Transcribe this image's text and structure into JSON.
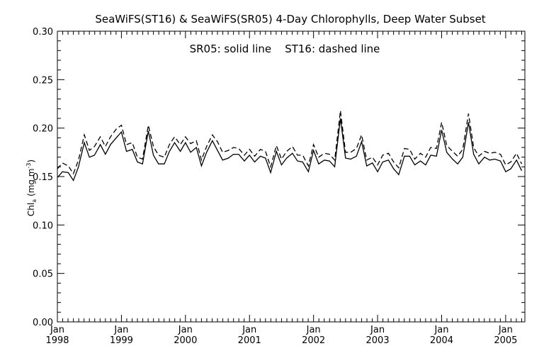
{
  "chart_data": {
    "type": "line",
    "title": "SeaWiFS(ST16) & SeaWiFS(SR05) 4-Day Chlorophylls, Deep Water Subset",
    "annotation": "SR05: solid line    ST16: dashed line",
    "ylabel": {
      "base": "Chl",
      "base_subscript": "a",
      "units_open": " (mg m",
      "units_superscript": "-3",
      "units_close": ")"
    },
    "xlabel": "",
    "ylim": [
      0.0,
      0.3
    ],
    "xlim": [
      1998.0,
      2005.3
    ],
    "yticks": [
      {
        "value": 0.0,
        "label": "0.00"
      },
      {
        "value": 0.05,
        "label": "0.05"
      },
      {
        "value": 0.1,
        "label": "0.10"
      },
      {
        "value": 0.15,
        "label": "0.15"
      },
      {
        "value": 0.2,
        "label": "0.20"
      },
      {
        "value": 0.25,
        "label": "0.25"
      },
      {
        "value": 0.3,
        "label": "0.30"
      }
    ],
    "xticks": [
      {
        "value": 1998,
        "month": "Jan",
        "year": "1998"
      },
      {
        "value": 1999,
        "month": "Jan",
        "year": "1999"
      },
      {
        "value": 2000,
        "month": "Jan",
        "year": "2000"
      },
      {
        "value": 2001,
        "month": "Jan",
        "year": "2001"
      },
      {
        "value": 2002,
        "month": "Jan",
        "year": "2002"
      },
      {
        "value": 2003,
        "month": "Jan",
        "year": "2003"
      },
      {
        "value": 2004,
        "month": "Jan",
        "year": "2004"
      },
      {
        "value": 2005,
        "month": "Jan",
        "year": "2005"
      }
    ],
    "x_minor_ticks_per_year": 12,
    "y_minor_ticks_per_major": 5,
    "grid": false,
    "x": [
      1998.0,
      1998.08,
      1998.17,
      1998.25,
      1998.33,
      1998.42,
      1998.5,
      1998.58,
      1998.67,
      1998.75,
      1998.83,
      1998.92,
      1999.0,
      1999.08,
      1999.17,
      1999.25,
      1999.33,
      1999.42,
      1999.5,
      1999.58,
      1999.67,
      1999.75,
      1999.83,
      1999.92,
      2000.0,
      2000.08,
      2000.17,
      2000.25,
      2000.33,
      2000.42,
      2000.5,
      2000.58,
      2000.67,
      2000.75,
      2000.83,
      2000.92,
      2001.0,
      2001.08,
      2001.17,
      2001.25,
      2001.33,
      2001.42,
      2001.5,
      2001.58,
      2001.67,
      2001.75,
      2001.83,
      2001.92,
      2002.0,
      2002.08,
      2002.17,
      2002.25,
      2002.33,
      2002.42,
      2002.5,
      2002.58,
      2002.67,
      2002.75,
      2002.83,
      2002.92,
      2003.0,
      2003.08,
      2003.17,
      2003.25,
      2003.33,
      2003.42,
      2003.5,
      2003.58,
      2003.67,
      2003.75,
      2003.83,
      2003.92,
      2004.0,
      2004.08,
      2004.17,
      2004.25,
      2004.33,
      2004.42,
      2004.5,
      2004.58,
      2004.67,
      2004.75,
      2004.83,
      2004.92,
      2005.0,
      2005.08,
      2005.17,
      2005.25
    ],
    "series": [
      {
        "name": "SR05",
        "style": "solid",
        "color": "#000000",
        "values": [
          0.149,
          0.155,
          0.154,
          0.146,
          0.16,
          0.185,
          0.17,
          0.172,
          0.183,
          0.173,
          0.183,
          0.19,
          0.196,
          0.176,
          0.178,
          0.165,
          0.163,
          0.197,
          0.172,
          0.163,
          0.163,
          0.176,
          0.185,
          0.176,
          0.185,
          0.175,
          0.18,
          0.161,
          0.175,
          0.187,
          0.177,
          0.167,
          0.169,
          0.173,
          0.173,
          0.166,
          0.172,
          0.165,
          0.171,
          0.169,
          0.154,
          0.176,
          0.162,
          0.169,
          0.174,
          0.166,
          0.165,
          0.155,
          0.177,
          0.163,
          0.167,
          0.166,
          0.16,
          0.21,
          0.169,
          0.168,
          0.171,
          0.186,
          0.161,
          0.164,
          0.155,
          0.165,
          0.167,
          0.158,
          0.152,
          0.171,
          0.171,
          0.162,
          0.166,
          0.162,
          0.172,
          0.171,
          0.198,
          0.175,
          0.168,
          0.163,
          0.17,
          0.206,
          0.173,
          0.163,
          0.17,
          0.167,
          0.168,
          0.166,
          0.155,
          0.158,
          0.167,
          0.156
        ]
      },
      {
        "name": "ST16",
        "style": "dashed",
        "color": "#000000",
        "values": [
          0.158,
          0.164,
          0.161,
          0.153,
          0.167,
          0.193,
          0.177,
          0.181,
          0.191,
          0.181,
          0.191,
          0.199,
          0.203,
          0.183,
          0.185,
          0.17,
          0.168,
          0.203,
          0.181,
          0.172,
          0.17,
          0.183,
          0.191,
          0.183,
          0.191,
          0.184,
          0.187,
          0.167,
          0.181,
          0.193,
          0.186,
          0.175,
          0.177,
          0.18,
          0.179,
          0.172,
          0.178,
          0.171,
          0.178,
          0.176,
          0.16,
          0.182,
          0.168,
          0.176,
          0.181,
          0.172,
          0.172,
          0.161,
          0.183,
          0.17,
          0.174,
          0.173,
          0.167,
          0.218,
          0.175,
          0.175,
          0.179,
          0.193,
          0.167,
          0.17,
          0.162,
          0.172,
          0.174,
          0.165,
          0.159,
          0.179,
          0.178,
          0.168,
          0.174,
          0.17,
          0.18,
          0.179,
          0.206,
          0.182,
          0.176,
          0.171,
          0.178,
          0.215,
          0.18,
          0.171,
          0.176,
          0.174,
          0.175,
          0.173,
          0.162,
          0.165,
          0.174,
          0.163
        ]
      }
    ]
  }
}
